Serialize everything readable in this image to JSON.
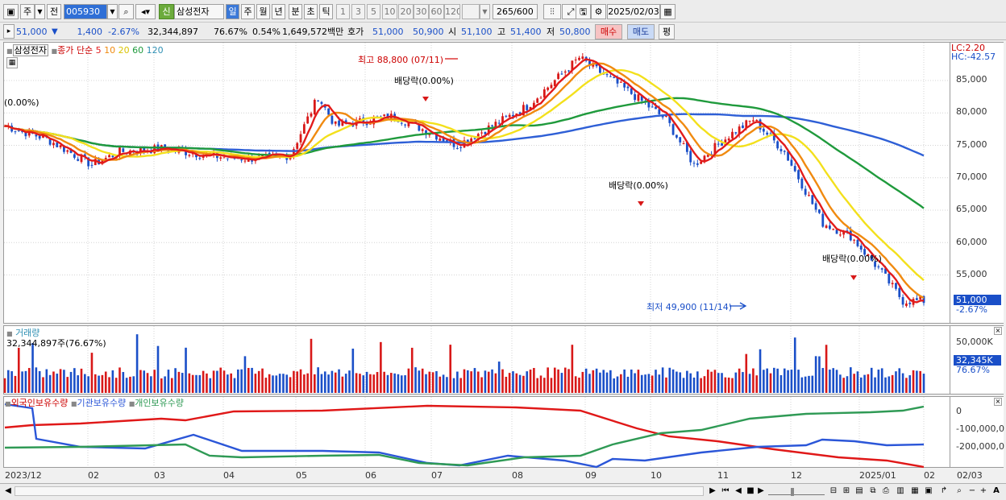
{
  "toolbar": {
    "mode_label": "주",
    "dropdown_arrow": "▼",
    "prev_label": "전",
    "stock_code": "005930",
    "search_icon": "search-icon",
    "sound_icon": "speaker-icon",
    "new_badge": "신",
    "stock_name": "삼성전자",
    "periods": [
      "일",
      "주",
      "월",
      "년",
      "분",
      "초",
      "틱"
    ],
    "intervals": [
      "1",
      "3",
      "5",
      "10",
      "20",
      "30",
      "60",
      "120"
    ],
    "count_value": "265",
    "count_total": "/600",
    "date_value": "2025/02/03",
    "icons": [
      "bar-chart-icon",
      "crosshair-icon",
      "save-icon",
      "settings-icon",
      "calendar-icon"
    ]
  },
  "quote": {
    "price": "51,000",
    "direction": "▼",
    "change": "1,400",
    "change_pct": "-2.67%",
    "volume": "32,344,897",
    "volume_ratio": "76.67%",
    "turnover_pct": "0.54%",
    "trade_value": "1,649,572백만",
    "ask_label": "호가",
    "ask1": "51,000",
    "ask2": "50,900",
    "open_label": "시",
    "open": "51,100",
    "high_label": "고",
    "high": "51,400",
    "low_label": "저",
    "low": "50,800",
    "buy_label": "매수",
    "sell_label": "매도",
    "avg_label": "평"
  },
  "price_panel": {
    "stock_label": "삼성전자",
    "legend_prefix": "종가 단순",
    "ma": [
      {
        "p": "5",
        "color": "#e21b1b"
      },
      {
        "p": "10",
        "color": "#f08a10"
      },
      {
        "p": "20",
        "color": "#f3e01c"
      },
      {
        "p": "60",
        "color": "#1f9a3c"
      },
      {
        "p": "120",
        "color": "#2e5fd6"
      }
    ],
    "lc": "LC:2.20",
    "hc": "HC:-42.57",
    "y_ticks": [
      "85,000",
      "80,000",
      "75,000",
      "70,000",
      "65,000",
      "60,000",
      "55,000"
    ],
    "last_price": "51,000",
    "last_change": "-2.67%",
    "ann_left": "(0.00%)",
    "ann_high": "최고 88,800 (07/11)",
    "ann_low": "최저 49,900 (11/14)",
    "ann_div": "배당락(0.00%)"
  },
  "volume_panel": {
    "title": "거래량",
    "value": "32,344,897주(76.67%)",
    "y_tick": "50,000K",
    "last": "32,345K",
    "last_pct": "76.67%"
  },
  "holders_panel": {
    "series": [
      {
        "name": "외국인보유수량",
        "color": "#e01818"
      },
      {
        "name": "기관보유수량",
        "color": "#2b56d8"
      },
      {
        "name": "개인보유수량",
        "color": "#2f9a55"
      }
    ],
    "y_ticks": [
      "0",
      "-100,000,0",
      "-200,000,0"
    ]
  },
  "x_axis": {
    "labels": [
      "2023/12",
      "02",
      "03",
      "04",
      "05",
      "06",
      "07",
      "08",
      "09",
      "10",
      "11",
      "12",
      "2025/01",
      "02",
      "02/03"
    ]
  },
  "colors": {
    "up": "#d81818",
    "down": "#1a4fc8"
  }
}
